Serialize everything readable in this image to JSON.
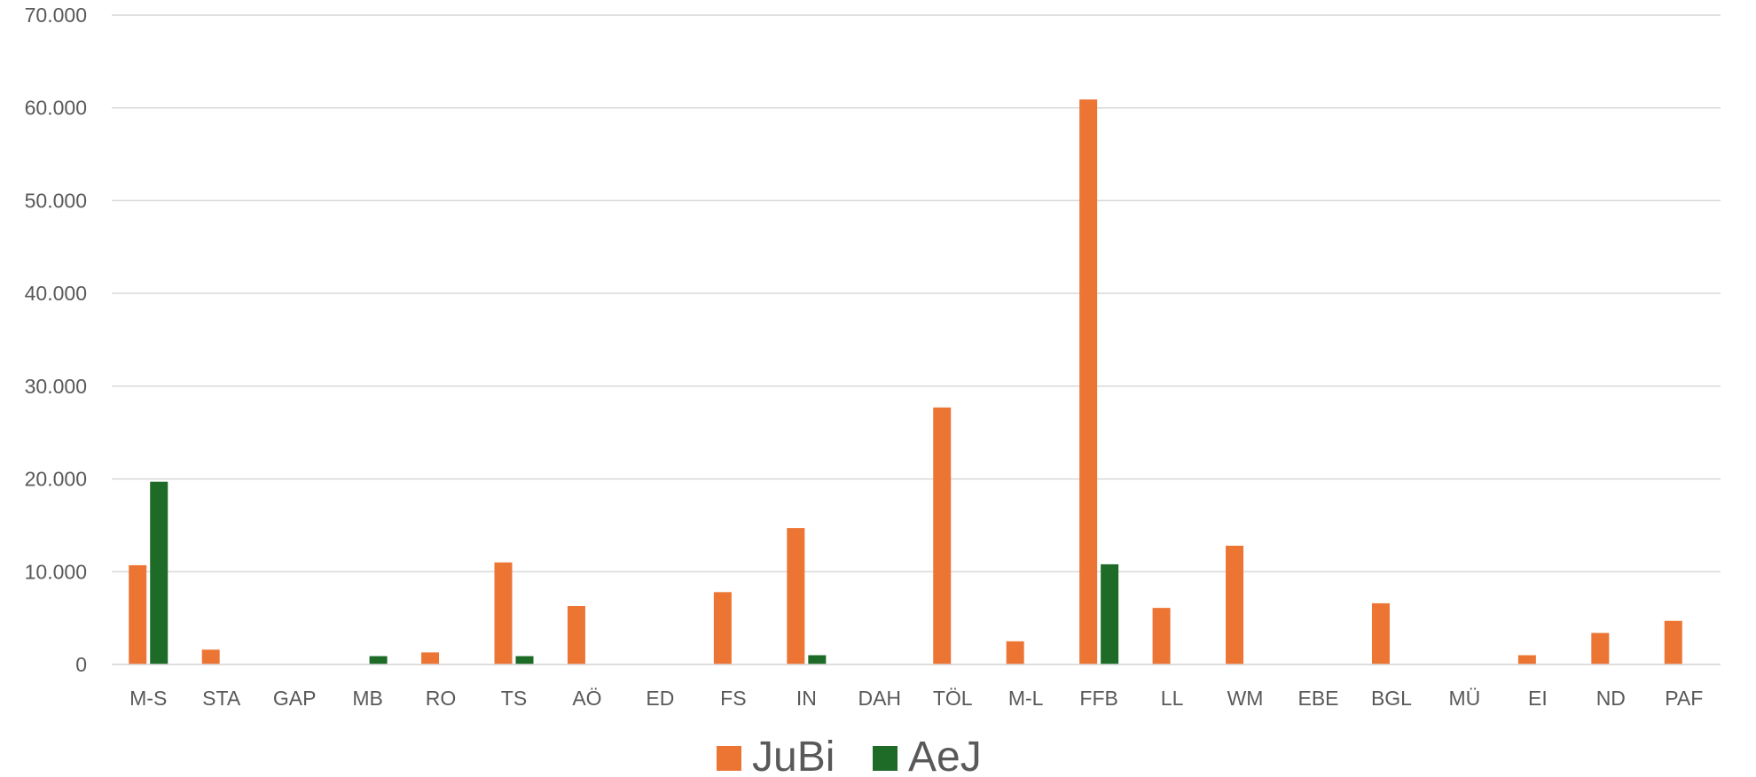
{
  "chart_data": {
    "type": "bar",
    "categories": [
      "M-S",
      "STA",
      "GAP",
      "MB",
      "RO",
      "TS",
      "AÖ",
      "ED",
      "FS",
      "IN",
      "DAH",
      "TÖL",
      "M-L",
      "FFB",
      "LL",
      "WM",
      "EBE",
      "BGL",
      "MÜ",
      "EI",
      "ND",
      "PAF"
    ],
    "series": [
      {
        "name": "JuBi",
        "color": "#ED7534",
        "values": [
          10700,
          1600,
          0,
          0,
          1300,
          11000,
          6300,
          0,
          7800,
          14700,
          0,
          27700,
          2500,
          60900,
          6100,
          12800,
          0,
          6600,
          0,
          1000,
          3400,
          4700
        ]
      },
      {
        "name": "AeJ",
        "color": "#1E6B28",
        "values": [
          19700,
          0,
          0,
          900,
          0,
          900,
          0,
          0,
          0,
          1000,
          0,
          0,
          0,
          10800,
          0,
          0,
          0,
          0,
          0,
          0,
          0,
          0
        ]
      }
    ],
    "yticks": [
      "0",
      "10.000",
      "20.000",
      "30.000",
      "40.000",
      "50.000",
      "60.000",
      "70.000"
    ],
    "ylim": [
      0,
      70000
    ],
    "grid": true,
    "legend": "bottom-center",
    "gridline_color": "#D9D9D9",
    "text_color": "#595959"
  }
}
